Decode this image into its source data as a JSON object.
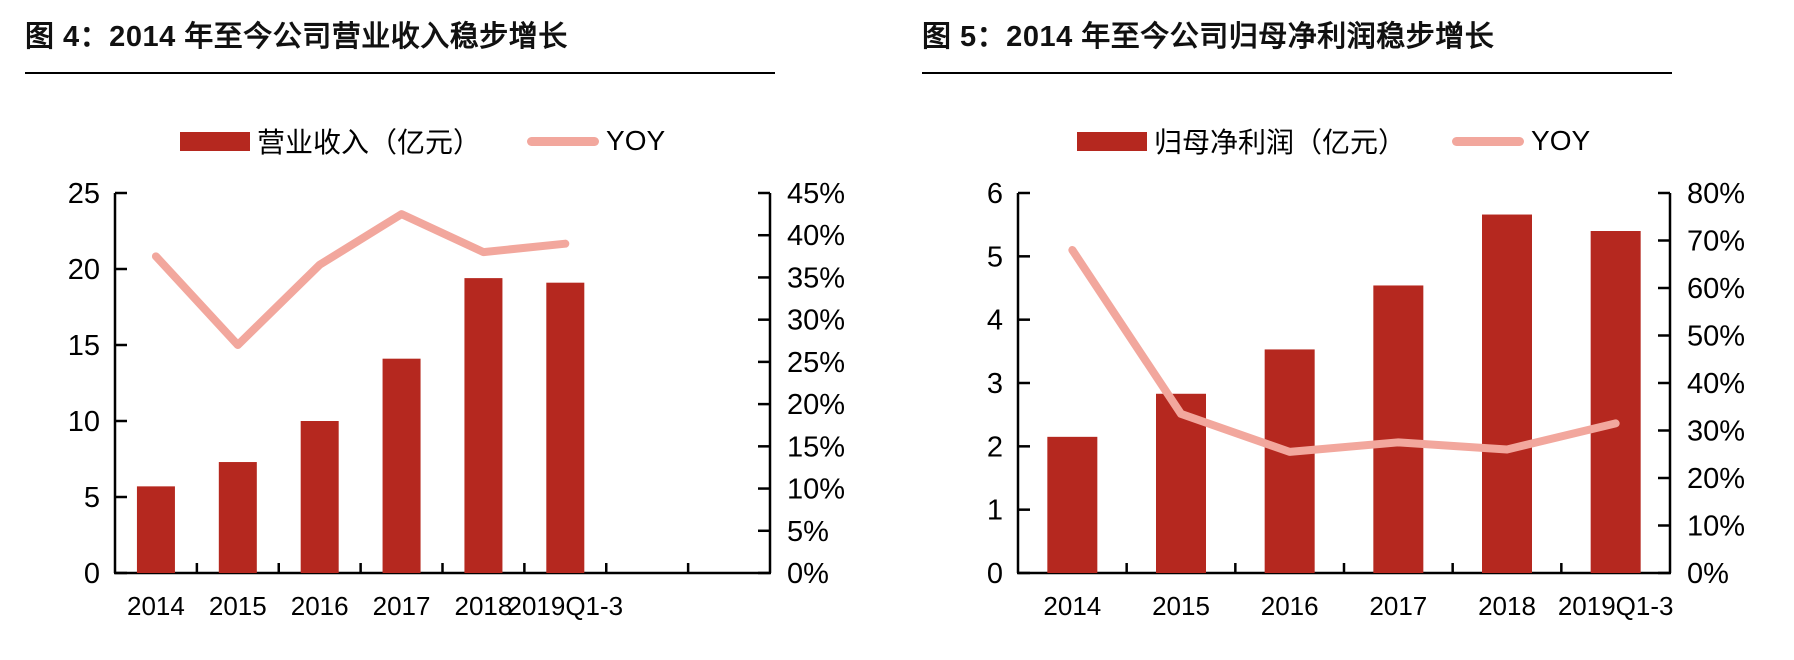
{
  "colors": {
    "bar": "#b5281f",
    "line": "#f2a79d",
    "axis": "#000000",
    "text": "#000000"
  },
  "chart_data": [
    {
      "type": "bar+line",
      "title": "图 4：2014 年至今公司营业收入稳步增长",
      "categories": [
        "2014",
        "2015",
        "2016",
        "2017",
        "2018",
        "2019Q1-3"
      ],
      "series": [
        {
          "name": "营业收入（亿元）",
          "type": "bar",
          "axis": "left",
          "values": [
            5.7,
            7.3,
            10.0,
            14.1,
            19.4,
            19.1
          ]
        },
        {
          "name": "YOY",
          "type": "line",
          "axis": "right",
          "values_pct": [
            37.5,
            27.0,
            36.5,
            42.5,
            38.0,
            39.0
          ]
        }
      ],
      "y_left": {
        "min": 0,
        "max": 25,
        "ticks": [
          "0",
          "5",
          "10",
          "15",
          "20",
          "25"
        ]
      },
      "y_right": {
        "min": 0,
        "max": 45,
        "ticks": [
          "0%",
          "5%",
          "10%",
          "15%",
          "20%",
          "25%",
          "30%",
          "35%",
          "40%",
          "45%"
        ]
      },
      "legend_position": "top",
      "grid": false
    },
    {
      "type": "bar+line",
      "title": "图 5：2014 年至今公司归母净利润稳步增长",
      "categories": [
        "2014",
        "2015",
        "2016",
        "2017",
        "2018",
        "2019Q1-3"
      ],
      "series": [
        {
          "name": "归母净利润（亿元）",
          "type": "bar",
          "axis": "left",
          "values": [
            2.15,
            2.83,
            3.53,
            4.54,
            5.66,
            5.4
          ]
        },
        {
          "name": "YOY",
          "type": "line",
          "axis": "right",
          "values_pct": [
            68.0,
            33.5,
            25.5,
            27.5,
            26.0,
            31.5
          ]
        }
      ],
      "y_left": {
        "min": 0,
        "max": 6,
        "ticks": [
          "0",
          "1",
          "2",
          "3",
          "4",
          "5",
          "6"
        ]
      },
      "y_right": {
        "min": 0,
        "max": 80,
        "ticks": [
          "0%",
          "10%",
          "20%",
          "30%",
          "40%",
          "50%",
          "60%",
          "70%",
          "80%"
        ]
      },
      "legend_position": "top",
      "grid": false
    }
  ]
}
